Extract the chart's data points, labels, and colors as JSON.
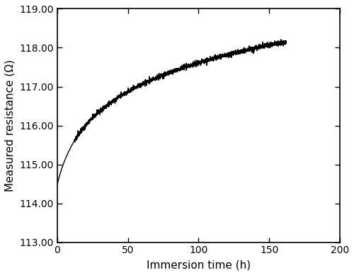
{
  "xlabel": "Immersion time (h)",
  "ylabel": "Measured resistance (Ω)",
  "xlim": [
    0,
    200
  ],
  "ylim": [
    113.0,
    119.0
  ],
  "xticks": [
    0,
    50,
    100,
    150,
    200
  ],
  "yticks": [
    113.0,
    114.0,
    115.0,
    116.0,
    117.0,
    118.0,
    119.0
  ],
  "line_color": "#000000",
  "background_color": "#ffffff",
  "curve_a": 114.48,
  "curve_b": 0.288,
  "curve_c": 0.07,
  "noise_amplitude": 0.025,
  "noise_start_x": 12,
  "spike_amplitude": 0.08,
  "figsize": [
    5.0,
    3.89
  ],
  "dpi": 100,
  "xlabel_fontsize": 11,
  "ylabel_fontsize": 11,
  "tick_fontsize": 10,
  "linewidth": 1.0,
  "spine_linewidth": 1.2
}
